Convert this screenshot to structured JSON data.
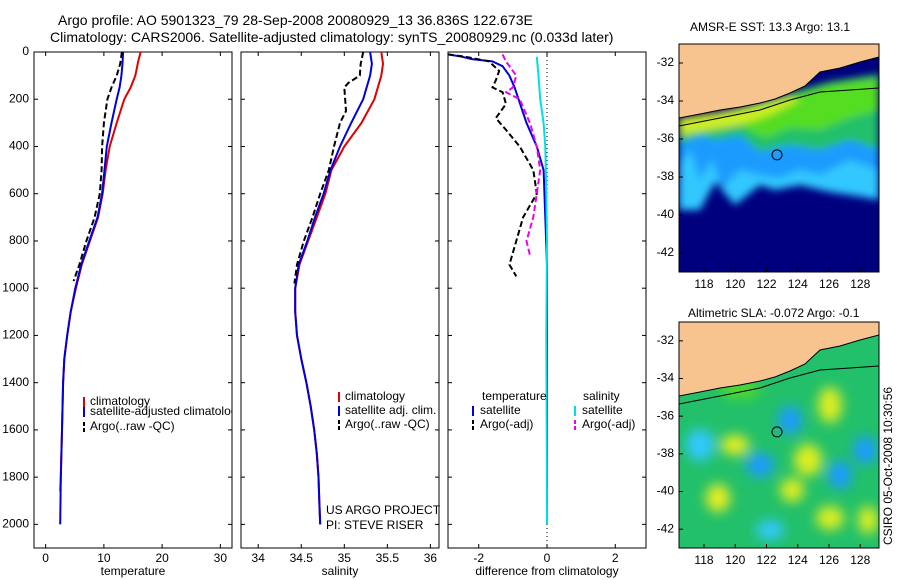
{
  "header": {
    "line1": "Argo profile: AO 5901323_79 28-Sep-2008 20080929_13 36.836S 122.673E",
    "line2": "Climatology: CARS2006. Satellite-adjusted climatology: synTS_20080929.nc (0.033d later)"
  },
  "side_label": "CSIRO 05-Oct-2008 10:30:56",
  "credit": [
    "US ARGO PROJECT",
    "PI: STEVE RISER"
  ],
  "colors": {
    "red": "#e00000",
    "blue": "#0000dd",
    "black": "#000000",
    "cyan": "#00e0e0",
    "magenta": "#ee00ee",
    "land": "#f7c38f",
    "deep": "#00007f"
  },
  "chart_data": [
    {
      "type": "line",
      "xlabel": "temperature",
      "ylabel": "",
      "xlim": [
        -2,
        32
      ],
      "ylim": [
        2100,
        0
      ],
      "xticks": [
        0,
        10,
        20,
        30
      ],
      "yticks": [
        0,
        200,
        400,
        600,
        800,
        1000,
        1200,
        1400,
        1600,
        1800,
        2000
      ],
      "legend": [
        "climatology",
        "satellite-adjusted climatology",
        "Argo(..raw -QC)"
      ],
      "series": [
        {
          "name": "climatology",
          "color": "red",
          "style": "solid",
          "points": [
            [
              16.3,
              0
            ],
            [
              15.9,
              40
            ],
            [
              15.4,
              100
            ],
            [
              14.6,
              150
            ],
            [
              13.5,
              200
            ],
            [
              12.2,
              300
            ],
            [
              11.0,
              400
            ],
            [
              10.3,
              500
            ],
            [
              9.8,
              600
            ],
            [
              9.0,
              700
            ],
            [
              7.6,
              800
            ],
            [
              6.2,
              900
            ],
            [
              5.2,
              1000
            ],
            [
              4.3,
              1100
            ],
            [
              3.7,
              1200
            ],
            [
              3.2,
              1300
            ],
            [
              3.0,
              1400
            ],
            [
              2.8,
              1600
            ],
            [
              2.6,
              1800
            ],
            [
              2.5,
              1860
            ]
          ]
        },
        {
          "name": "satellite-adjusted climatology",
          "color": "blue",
          "style": "solid",
          "points": [
            [
              13.3,
              0
            ],
            [
              13.2,
              50
            ],
            [
              13.0,
              100
            ],
            [
              12.7,
              150
            ],
            [
              12.2,
              200
            ],
            [
              11.3,
              300
            ],
            [
              10.5,
              400
            ],
            [
              10.1,
              500
            ],
            [
              9.7,
              600
            ],
            [
              8.9,
              700
            ],
            [
              7.5,
              800
            ],
            [
              6.1,
              900
            ],
            [
              5.1,
              1000
            ],
            [
              4.3,
              1100
            ],
            [
              3.7,
              1200
            ],
            [
              3.2,
              1300
            ],
            [
              3.0,
              1400
            ],
            [
              2.8,
              1600
            ],
            [
              2.6,
              1800
            ],
            [
              2.5,
              2000
            ]
          ]
        },
        {
          "name": "Argo(..raw -QC)",
          "color": "black",
          "style": "dash",
          "points": [
            [
              13.1,
              0
            ],
            [
              12.8,
              50
            ],
            [
              12.2,
              100
            ],
            [
              11.3,
              150
            ],
            [
              10.6,
              200
            ],
            [
              10.0,
              300
            ],
            [
              9.7,
              400
            ],
            [
              9.6,
              500
            ],
            [
              9.3,
              600
            ],
            [
              8.4,
              700
            ],
            [
              7.0,
              800
            ],
            [
              5.8,
              900
            ],
            [
              4.8,
              970
            ]
          ]
        }
      ]
    },
    {
      "type": "line",
      "xlabel": "salinity",
      "ylabel": "",
      "xlim": [
        33.8,
        36.1
      ],
      "ylim": [
        2100,
        0
      ],
      "xticks": [
        34,
        34.5,
        35,
        35.5,
        36
      ],
      "yticks": [
        0,
        200,
        400,
        600,
        800,
        1000,
        1200,
        1400,
        1600,
        1800,
        2000
      ],
      "legend": [
        "climatology",
        "satellite adj. clim.",
        "Argo(..raw -QC)"
      ],
      "series": [
        {
          "name": "climatology",
          "color": "red",
          "style": "solid",
          "points": [
            [
              35.43,
              0
            ],
            [
              35.45,
              50
            ],
            [
              35.43,
              100
            ],
            [
              35.35,
              200
            ],
            [
              35.2,
              300
            ],
            [
              35.0,
              400
            ],
            [
              34.85,
              500
            ],
            [
              34.78,
              600
            ],
            [
              34.68,
              700
            ],
            [
              34.58,
              800
            ],
            [
              34.48,
              900
            ],
            [
              34.43,
              1000
            ],
            [
              34.43,
              1100
            ],
            [
              34.45,
              1200
            ],
            [
              34.5,
              1300
            ],
            [
              34.56,
              1400
            ],
            [
              34.61,
              1500
            ],
            [
              34.65,
              1600
            ],
            [
              34.68,
              1700
            ],
            [
              34.7,
              1800
            ],
            [
              34.71,
              1900
            ],
            [
              34.72,
              2000
            ]
          ]
        },
        {
          "name": "satellite adj. clim.",
          "color": "blue",
          "style": "solid",
          "points": [
            [
              35.3,
              0
            ],
            [
              35.32,
              50
            ],
            [
              35.3,
              100
            ],
            [
              35.22,
              200
            ],
            [
              35.08,
              300
            ],
            [
              34.95,
              400
            ],
            [
              34.84,
              500
            ],
            [
              34.76,
              600
            ],
            [
              34.66,
              700
            ],
            [
              34.57,
              800
            ],
            [
              34.47,
              900
            ],
            [
              34.43,
              1000
            ],
            [
              34.43,
              1100
            ],
            [
              34.45,
              1200
            ],
            [
              34.5,
              1300
            ],
            [
              34.56,
              1400
            ],
            [
              34.61,
              1500
            ],
            [
              34.65,
              1600
            ],
            [
              34.68,
              1700
            ],
            [
              34.7,
              1800
            ],
            [
              34.71,
              1900
            ],
            [
              34.72,
              2000
            ]
          ]
        },
        {
          "name": "Argo(..raw -QC)",
          "color": "black",
          "style": "dash",
          "points": [
            [
              35.22,
              0
            ],
            [
              35.19,
              50
            ],
            [
              35.18,
              100
            ],
            [
              35.05,
              130
            ],
            [
              35.0,
              150
            ],
            [
              35.02,
              250
            ],
            [
              34.95,
              300
            ],
            [
              34.88,
              400
            ],
            [
              34.82,
              500
            ],
            [
              34.72,
              600
            ],
            [
              34.63,
              700
            ],
            [
              34.53,
              800
            ],
            [
              34.45,
              900
            ],
            [
              34.42,
              980
            ]
          ]
        }
      ]
    },
    {
      "type": "line",
      "xlabel": "difference from climatology",
      "ylabel": "",
      "xlim": [
        -2.9,
        2.9
      ],
      "ylim": [
        2100,
        0
      ],
      "xticks": [
        -2,
        0,
        2
      ],
      "yticks": [
        0,
        200,
        400,
        600,
        800,
        1000,
        1200,
        1400,
        1600,
        1800,
        2000
      ],
      "legend": [
        "temperature",
        "satellite",
        "Argo(-adj)",
        "salinity",
        "satellite",
        "Argo(-adj)"
      ],
      "series": [
        {
          "name": "temperature satellite",
          "color": "blue",
          "style": "solid",
          "points": [
            [
              -2.9,
              10
            ],
            [
              -2.5,
              20
            ],
            [
              -2.2,
              30
            ],
            [
              -1.6,
              40
            ],
            [
              -1.3,
              60
            ],
            [
              -1.1,
              100
            ],
            [
              -0.95,
              150
            ],
            [
              -0.6,
              300
            ],
            [
              -0.3,
              400
            ],
            [
              -0.1,
              500
            ],
            [
              -0.05,
              700
            ],
            [
              0,
              900
            ],
            [
              0,
              2000
            ]
          ]
        },
        {
          "name": "temperature Argo(-adj)",
          "color": "black",
          "style": "dash",
          "points": [
            [
              -2.9,
              10
            ],
            [
              -2.4,
              20
            ],
            [
              -1.7,
              40
            ],
            [
              -1.4,
              80
            ],
            [
              -1.5,
              120
            ],
            [
              -1.6,
              150
            ],
            [
              -1.3,
              170
            ],
            [
              -1.2,
              220
            ],
            [
              -1.5,
              280
            ],
            [
              -1.2,
              330
            ],
            [
              -0.8,
              400
            ],
            [
              -0.4,
              500
            ],
            [
              -0.3,
              600
            ],
            [
              -0.7,
              700
            ],
            [
              -0.9,
              800
            ],
            [
              -1.1,
              900
            ],
            [
              -0.9,
              950
            ]
          ]
        },
        {
          "name": "salinity satellite",
          "color": "cyan",
          "style": "solid",
          "points": [
            [
              -0.3,
              20
            ],
            [
              -0.25,
              100
            ],
            [
              -0.2,
              200
            ],
            [
              -0.1,
              300
            ],
            [
              -0.05,
              400
            ],
            [
              -0.02,
              600
            ],
            [
              0,
              800
            ],
            [
              -0.02,
              1200
            ],
            [
              -0.01,
              1600
            ],
            [
              0,
              2000
            ]
          ]
        },
        {
          "name": "salinity Argo(-adj)",
          "color": "magenta",
          "style": "dash",
          "points": [
            [
              -1.3,
              10
            ],
            [
              -1.2,
              40
            ],
            [
              -0.9,
              100
            ],
            [
              -1.0,
              150
            ],
            [
              -1.2,
              170
            ],
            [
              -0.8,
              200
            ],
            [
              -0.5,
              300
            ],
            [
              -0.3,
              400
            ],
            [
              -0.2,
              500
            ],
            [
              -0.4,
              700
            ],
            [
              -0.6,
              800
            ],
            [
              -0.5,
              860
            ]
          ]
        }
      ]
    },
    {
      "type": "heatmap",
      "title": "AMSR-E SST: 13.3 Argo: 13.1",
      "xlim": [
        116.4,
        129.2
      ],
      "ylim": [
        -43,
        -31
      ],
      "xticks": [
        118,
        120,
        122,
        124,
        126,
        128
      ],
      "yticks": [
        -32,
        -34,
        -36,
        -38,
        -40,
        -42
      ],
      "marker": {
        "lon": 122.673,
        "lat": -36.836
      }
    },
    {
      "type": "heatmap",
      "title": "Altimetric SLA: -0.072 Argo: -0.1",
      "xlim": [
        116.4,
        129.2
      ],
      "ylim": [
        -43,
        -31
      ],
      "xticks": [
        118,
        120,
        122,
        124,
        126,
        128
      ],
      "yticks": [
        -32,
        -34,
        -36,
        -38,
        -40,
        -42
      ],
      "marker": {
        "lon": 122.673,
        "lat": -36.836
      }
    }
  ]
}
